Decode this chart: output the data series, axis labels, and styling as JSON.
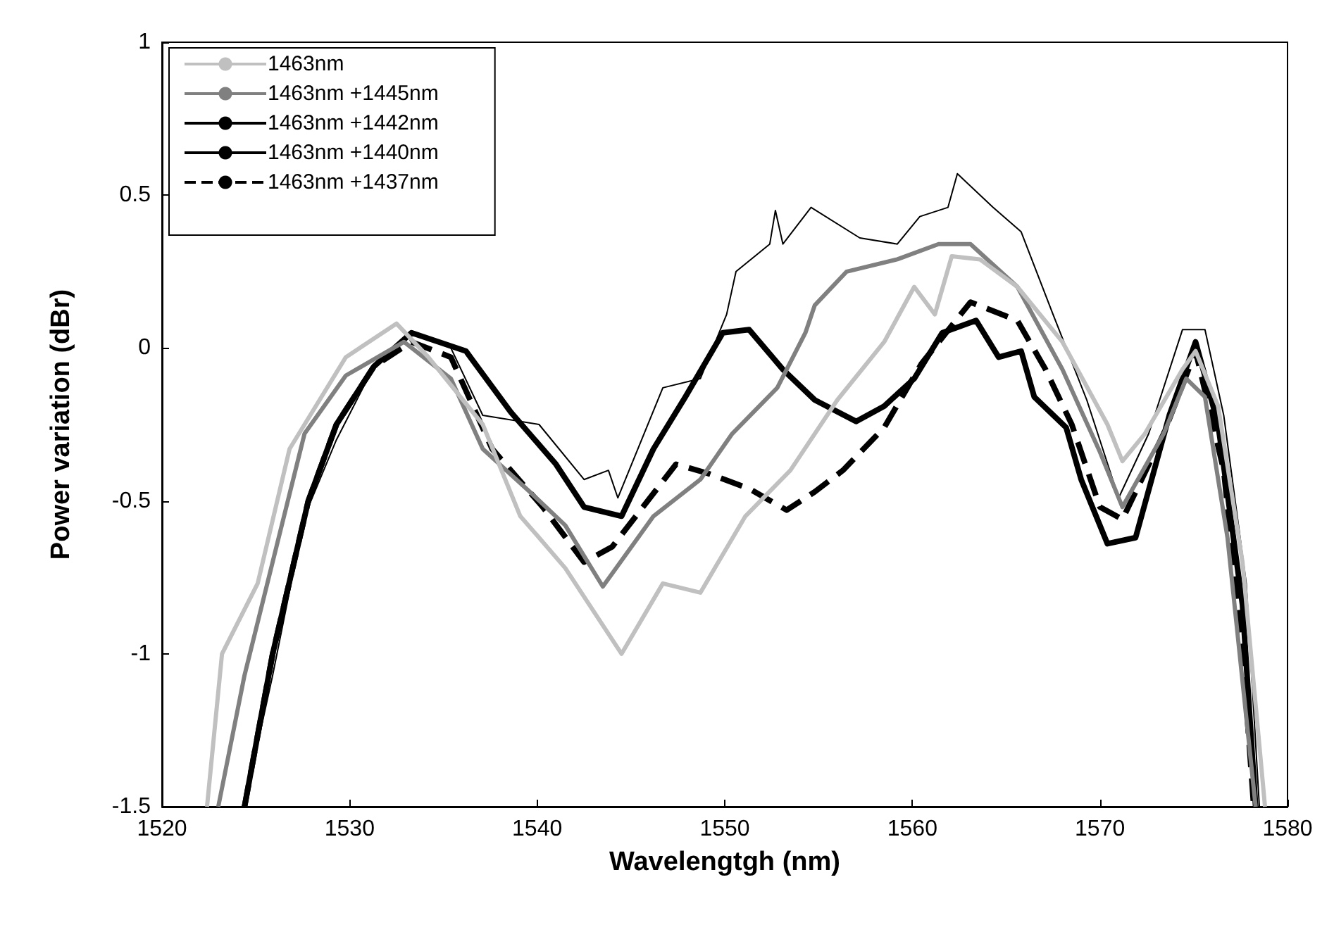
{
  "chart_data": {
    "type": "line",
    "xlabel": "Wavelengtgh (nm)",
    "ylabel": "Power variation (dBr)",
    "xlim": [
      1520,
      1580
    ],
    "xticks": [
      1520,
      1530,
      1540,
      1550,
      1560,
      1570,
      1580
    ],
    "ylim": [
      -1.5,
      1
    ],
    "yticks": [
      -1.5,
      -1,
      -0.5,
      0,
      0.5,
      1
    ],
    "grid": false,
    "legend": "top left",
    "series": [
      {
        "name": "1463nm",
        "color": "#c0c0c0",
        "line_style": "solid",
        "x": [
          1522.4,
          1523.2,
          1525.1,
          1526.8,
          1529.8,
          1532.5,
          1534.2,
          1537.1,
          1539.1,
          1540.1,
          1541.5,
          1544.5,
          1546.7,
          1548.7,
          1551.1,
          1553.5,
          1556.0,
          1558.5,
          1560.1,
          1561.2,
          1562.1,
          1563.6,
          1565.6,
          1568.0,
          1570.4,
          1571.2,
          1572.4,
          1574.4,
          1575.1,
          1576.3,
          1577.6,
          1578.8
        ],
        "values": [
          -1.5,
          -1.0,
          -0.77,
          -0.33,
          -0.03,
          0.08,
          -0.03,
          -0.25,
          -0.55,
          -0.62,
          -0.72,
          -1.0,
          -0.77,
          -0.8,
          -0.55,
          -0.4,
          -0.17,
          0.02,
          0.2,
          0.11,
          0.3,
          0.29,
          0.2,
          0.02,
          -0.25,
          -0.37,
          -0.28,
          -0.07,
          -0.01,
          -0.19,
          -0.7,
          -1.5
        ]
      },
      {
        "name": "1463nm +1445nm",
        "color": "#808080",
        "line_style": "solid",
        "x": [
          1523.0,
          1524.4,
          1526.1,
          1527.6,
          1529.8,
          1532.9,
          1535.4,
          1537.1,
          1539.6,
          1541.5,
          1543.5,
          1546.2,
          1548.7,
          1550.4,
          1552.8,
          1554.3,
          1554.8,
          1556.5,
          1559.2,
          1561.4,
          1563.1,
          1565.6,
          1568.0,
          1570.0,
          1571.2,
          1573.4,
          1574.6,
          1575.6,
          1576.8,
          1578.3
        ],
        "values": [
          -1.5,
          -1.07,
          -0.65,
          -0.28,
          -0.09,
          0.02,
          -0.1,
          -0.33,
          -0.47,
          -0.58,
          -0.78,
          -0.55,
          -0.43,
          -0.28,
          -0.13,
          0.05,
          0.14,
          0.25,
          0.29,
          0.34,
          0.34,
          0.2,
          -0.07,
          -0.34,
          -0.52,
          -0.28,
          -0.1,
          -0.16,
          -0.62,
          -1.5
        ]
      },
      {
        "name": "1463nm +1442nm",
        "color": "#000000",
        "line_style": "solid",
        "x": [
          1524.4,
          1525.9,
          1527.6,
          1529.3,
          1531.3,
          1533.2,
          1535.4,
          1537.1,
          1540.1,
          1542.5,
          1543.8,
          1544.3,
          1546.7,
          1548.7,
          1550.1,
          1550.6,
          1552.4,
          1552.7,
          1553.1,
          1554.6,
          1557.2,
          1559.2,
          1560.4,
          1561.9,
          1562.4,
          1564.3,
          1565.8,
          1567.5,
          1569.3,
          1571.0,
          1572.6,
          1574.4,
          1575.6,
          1576.6,
          1577.8,
          1578.5
        ],
        "values": [
          -1.49,
          -1.07,
          -0.55,
          -0.3,
          -0.06,
          0.05,
          0.0,
          -0.22,
          -0.25,
          -0.43,
          -0.4,
          -0.49,
          -0.13,
          -0.1,
          0.11,
          0.25,
          0.34,
          0.45,
          0.34,
          0.46,
          0.36,
          0.34,
          0.43,
          0.46,
          0.57,
          0.46,
          0.38,
          0.11,
          -0.17,
          -0.49,
          -0.28,
          0.06,
          0.06,
          -0.22,
          -0.77,
          -1.5
        ]
      },
      {
        "name": "1463nm +1440nm",
        "color": "#000000",
        "line_style": "solid",
        "x": [
          1524.4,
          1525.9,
          1527.8,
          1529.3,
          1531.3,
          1533.3,
          1536.2,
          1538.6,
          1541.0,
          1542.5,
          1544.5,
          1546.2,
          1547.9,
          1549.9,
          1551.3,
          1553.1,
          1554.8,
          1557.0,
          1558.5,
          1560.1,
          1561.6,
          1563.4,
          1564.6,
          1565.8,
          1566.5,
          1568.2,
          1569.0,
          1570.4,
          1571.9,
          1573.7,
          1575.1,
          1576.3,
          1577.6,
          1578.3
        ],
        "values": [
          -1.5,
          -1.0,
          -0.5,
          -0.25,
          -0.06,
          0.05,
          -0.01,
          -0.21,
          -0.38,
          -0.52,
          -0.55,
          -0.33,
          -0.16,
          0.05,
          0.06,
          -0.07,
          -0.17,
          -0.24,
          -0.19,
          -0.1,
          0.05,
          0.09,
          -0.03,
          -0.01,
          -0.16,
          -0.26,
          -0.43,
          -0.64,
          -0.62,
          -0.22,
          0.02,
          -0.25,
          -0.84,
          -1.5
        ]
      },
      {
        "name": "1463nm +1437nm",
        "color": "#000000",
        "line_style": "dashed",
        "x": [
          1524.4,
          1525.9,
          1527.8,
          1529.3,
          1531.3,
          1533.3,
          1535.4,
          1537.6,
          1540.3,
          1542.5,
          1544.0,
          1547.4,
          1549.1,
          1551.3,
          1553.3,
          1554.8,
          1556.3,
          1558.5,
          1560.5,
          1563.1,
          1565.6,
          1567.1,
          1568.5,
          1570.0,
          1571.2,
          1573.4,
          1575.1,
          1576.6,
          1577.6,
          1578.2
        ],
        "values": [
          -1.5,
          -1.0,
          -0.5,
          -0.25,
          -0.06,
          0.02,
          -0.03,
          -0.33,
          -0.52,
          -0.7,
          -0.65,
          -0.38,
          -0.41,
          -0.46,
          -0.53,
          -0.47,
          -0.4,
          -0.26,
          -0.05,
          0.15,
          0.09,
          -0.07,
          -0.25,
          -0.52,
          -0.56,
          -0.28,
          -0.01,
          -0.4,
          -0.99,
          -1.5
        ]
      }
    ]
  }
}
